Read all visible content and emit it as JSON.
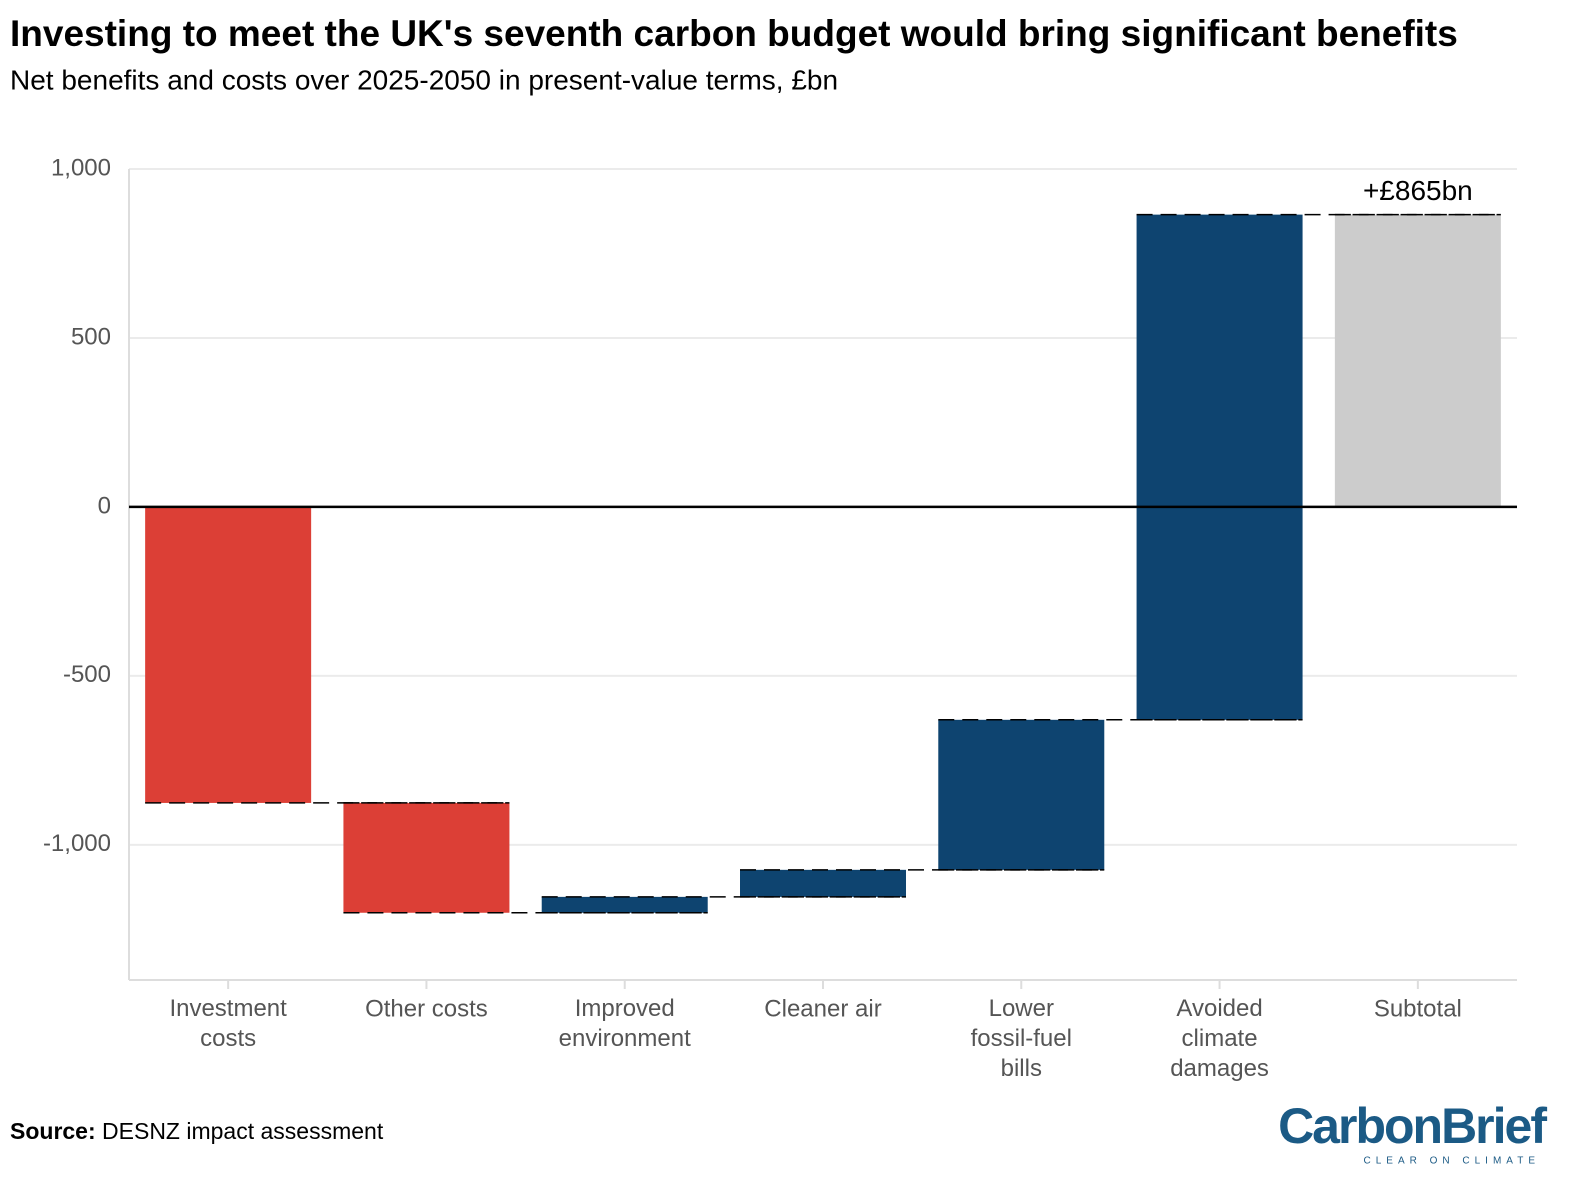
{
  "chart_data": {
    "type": "waterfall",
    "title": "Investing to meet the UK's seventh carbon budget would bring significant benefits",
    "subtitle": "Net benefits and costs over 2025-2050 in present-value terms, £bn",
    "categories": [
      "Investment\ncosts",
      "Other costs",
      "Improved\nenvironment",
      "Cleaner air",
      "Lower\nfossil-fuel\nbills",
      "Avoided\nclimate\ndamages",
      "Subtotal"
    ],
    "values": [
      -876,
      -325,
      47,
      80,
      444,
      1495,
      865
    ],
    "measure": [
      "relative",
      "relative",
      "relative",
      "relative",
      "relative",
      "relative",
      "total"
    ],
    "value_labels": [
      null,
      null,
      null,
      null,
      null,
      null,
      "+£865bn"
    ],
    "colors": [
      "#dc3f36",
      "#dc3f36",
      "#0e4470",
      "#0e4470",
      "#0e4470",
      "#0e4470",
      "#cccccc"
    ],
    "ylim": [
      -1400,
      1000
    ],
    "yticks": [
      {
        "value": 1000,
        "label": "1,000"
      },
      500,
      0,
      -500,
      {
        "value": -1000,
        "label": "-1,000"
      }
    ],
    "grid": true,
    "source_label": "Source:",
    "source": "DESNZ impact assessment",
    "logo": {
      "name": "CarbonBrief",
      "tagline": "CLEAR ON CLIMATE"
    }
  }
}
